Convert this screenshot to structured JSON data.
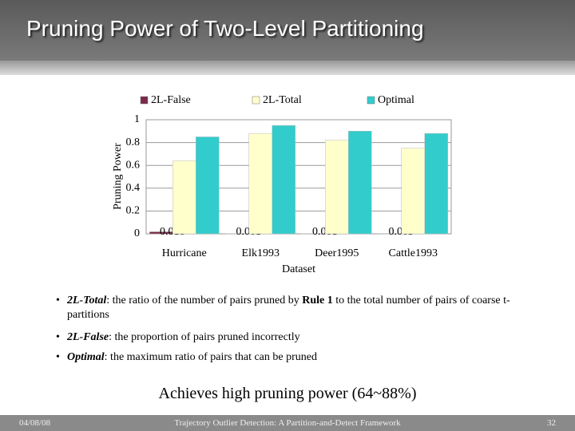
{
  "slide": {
    "title": "Pruning Power of Two-Level Partitioning",
    "bullets": [
      [
        {
          "text": "2L-Total",
          "style": "term"
        },
        {
          "text": ": the ratio of the number of pairs pruned by ",
          "style": "plain"
        },
        {
          "text": "Rule 1",
          "style": "bold"
        },
        {
          "text": " to the total number of pairs of coarse t-partitions",
          "style": "plain"
        }
      ],
      [
        {
          "text": "2L-False",
          "style": "term"
        },
        {
          "text": ": the proportion of pairs pruned incorrectly",
          "style": "plain"
        }
      ],
      [
        {
          "text": "Optimal",
          "style": "term"
        },
        {
          "text": ": the maximum ratio of pairs that can be pruned",
          "style": "plain"
        }
      ]
    ],
    "conclusion": "Achieves high pruning power (64~88%)",
    "footer": {
      "date": "04/08/08",
      "center": "Trajectory Outlier Detection: A Partition-and-Detect Framework",
      "page": "32"
    }
  },
  "chart_data": {
    "type": "bar",
    "categories": [
      "Hurricane",
      "Elk1993",
      "Deer1995",
      "Cattle1993"
    ],
    "series": [
      {
        "name": "2L-False",
        "color": "#7a2a4a",
        "values": [
          0.018,
          0.001,
          0.001,
          0.003
        ],
        "show_labels": true
      },
      {
        "name": "2L-Total",
        "color": "#ffffcc",
        "values": [
          0.64,
          0.88,
          0.82,
          0.75
        ]
      },
      {
        "name": "Optimal",
        "color": "#33cccc",
        "values": [
          0.85,
          0.95,
          0.9,
          0.88
        ]
      }
    ],
    "ylim": [
      0,
      1
    ],
    "yticks": [
      0,
      0.2,
      0.4,
      0.6,
      0.8,
      1
    ],
    "y_label": "Pruning Power",
    "x_label": "Dataset",
    "grid": true
  }
}
